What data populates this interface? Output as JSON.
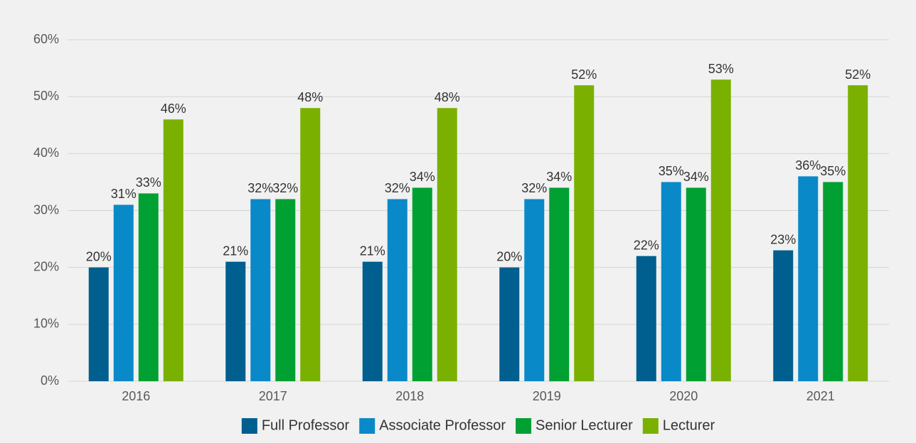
{
  "chart_data": {
    "type": "bar",
    "categories": [
      "2016",
      "2017",
      "2018",
      "2019",
      "2020",
      "2021"
    ],
    "series": [
      {
        "name": "Full Professor",
        "color": "#005f8f",
        "values": [
          20,
          21,
          21,
          20,
          22,
          23
        ],
        "value_labels": [
          "20%",
          "21%",
          "21%",
          "20%",
          "22%",
          "23%"
        ]
      },
      {
        "name": "Associate Professor",
        "color": "#0a89c9",
        "values": [
          31,
          32,
          32,
          32,
          35,
          36
        ],
        "value_labels": [
          "31%",
          "32%",
          "32%",
          "32%",
          "35%",
          "36%"
        ]
      },
      {
        "name": "Senior Lecturer",
        "color": "#00a032",
        "values": [
          33,
          32,
          34,
          34,
          34,
          35
        ],
        "value_labels": [
          "33%",
          "32%",
          "34%",
          "34%",
          "34%",
          "35%"
        ]
      },
      {
        "name": "Lecturer",
        "color": "#7ab000",
        "values": [
          46,
          48,
          48,
          52,
          53,
          52
        ],
        "value_labels": [
          "46%",
          "48%",
          "48%",
          "52%",
          "53%",
          "52%"
        ]
      }
    ],
    "ylim": [
      0,
      60
    ],
    "yticks": [
      {
        "value": 0,
        "label": "0%"
      },
      {
        "value": 10,
        "label": "10%"
      },
      {
        "value": 20,
        "label": "20%"
      },
      {
        "value": 30,
        "label": "30%"
      },
      {
        "value": 40,
        "label": "40%"
      },
      {
        "value": 50,
        "label": "50%"
      },
      {
        "value": 60,
        "label": "60%"
      }
    ],
    "grid": true,
    "legend": "bottom"
  }
}
